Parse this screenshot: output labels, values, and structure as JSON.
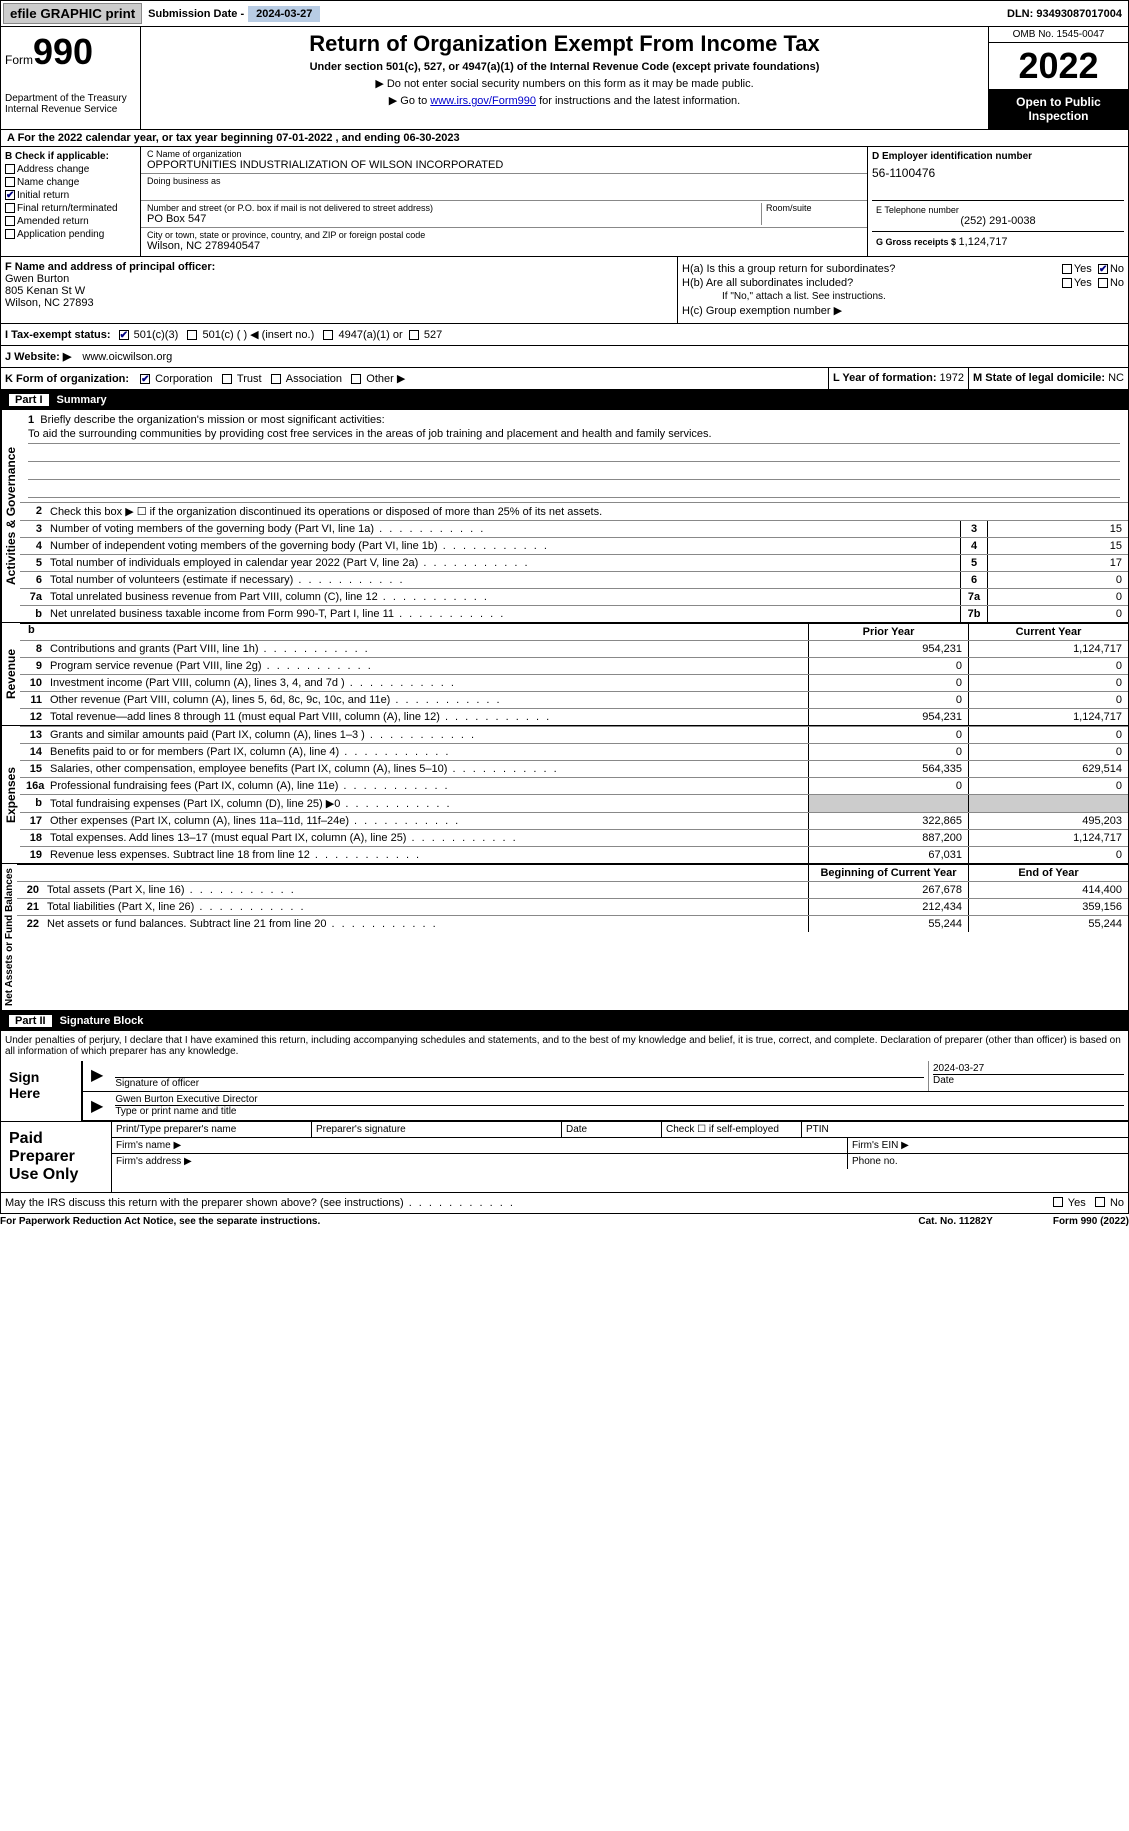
{
  "topbar": {
    "efile_button": "efile GRAPHIC print",
    "submission_label": "Submission Date - ",
    "submission_date": "2024-03-27",
    "dln_label": "DLN: ",
    "dln": "93493087017004"
  },
  "header": {
    "form_prefix": "Form",
    "form_number": "990",
    "dept1": "Department of the Treasury",
    "dept2": "Internal Revenue Service",
    "main_title": "Return of Organization Exempt From Income Tax",
    "subtitle": "Under section 501(c), 527, or 4947(a)(1) of the Internal Revenue Code (except private foundations)",
    "instruction1": "▶ Do not enter social security numbers on this form as it may be made public.",
    "instruction2_prefix": "▶ Go to ",
    "instruction2_link": "www.irs.gov/Form990",
    "instruction2_suffix": " for instructions and the latest information.",
    "omb": "OMB No. 1545-0047",
    "year": "2022",
    "inspection": "Open to Public Inspection"
  },
  "cal_year": "A For the 2022 calendar year, or tax year beginning 07-01-2022    , and ending 06-30-2023",
  "section_b": {
    "label": "B Check if applicable:",
    "options": [
      "Address change",
      "Name change",
      "Initial return",
      "Final return/terminated",
      "Amended return",
      "Application pending"
    ],
    "checked_index": 2
  },
  "section_c": {
    "name_label": "C Name of organization",
    "org_name": "OPPORTUNITIES INDUSTRIALIZATION OF WILSON INCORPORATED",
    "dba_label": "Doing business as",
    "addr_label": "Number and street (or P.O. box if mail is not delivered to street address)",
    "addr": "PO Box 547",
    "room_label": "Room/suite",
    "city_label": "City or town, state or province, country, and ZIP or foreign postal code",
    "city": "Wilson, NC  278940547"
  },
  "section_d": {
    "ein_label": "D Employer identification number",
    "ein": "56-1100476",
    "phone_label": "E Telephone number",
    "phone": "(252) 291-0038",
    "receipts_label": "G Gross receipts $ ",
    "receipts": "1,124,717"
  },
  "section_f": {
    "label": "F Name and address of principal officer:",
    "name": "Gwen Burton",
    "addr1": "805 Kenan St W",
    "addr2": "Wilson, NC  27893"
  },
  "section_h": {
    "ha_label": "H(a)  Is this a group return for subordinates?",
    "hb_label": "H(b)  Are all subordinates included?",
    "hb_note": "If \"No,\" attach a list. See instructions.",
    "hc_label": "H(c)  Group exemption number ▶",
    "yes": "Yes",
    "no": "No",
    "ha_no_checked": true
  },
  "section_i": {
    "label": "I   Tax-exempt status:",
    "opt1": "501(c)(3)",
    "opt2": "501(c) (  ) ◀ (insert no.)",
    "opt3": "4947(a)(1) or",
    "opt4": "527",
    "checked": 0
  },
  "section_j": {
    "label": "J  Website: ▶",
    "value": "www.oicwilson.org"
  },
  "section_k": {
    "label": "K Form of organization:",
    "opts": [
      "Corporation",
      "Trust",
      "Association",
      "Other ▶"
    ],
    "checked": 0
  },
  "section_l": {
    "label": "L Year of formation: ",
    "value": "1972"
  },
  "section_m": {
    "label": "M State of legal domicile: ",
    "value": "NC"
  },
  "parts": {
    "part1_num": "Part I",
    "part1_title": "Summary",
    "part2_num": "Part II",
    "part2_title": "Signature Block"
  },
  "summary": {
    "vert_labels": [
      "Activities & Governance",
      "Revenue",
      "Expenses",
      "Net Assets or Fund Balances"
    ],
    "line1_label": "Briefly describe the organization's mission or most significant activities:",
    "mission": "To aid the surrounding communities by providing cost free services in the areas of job training and placement and health and family services.",
    "line2_label": "Check this box ▶ ☐  if the organization discontinued its operations or disposed of more than 25% of its net assets.",
    "lines_simple": [
      {
        "num": "3",
        "desc": "Number of voting members of the governing body (Part VI, line 1a)",
        "box": "3",
        "val": "15"
      },
      {
        "num": "4",
        "desc": "Number of independent voting members of the governing body (Part VI, line 1b)",
        "box": "4",
        "val": "15"
      },
      {
        "num": "5",
        "desc": "Total number of individuals employed in calendar year 2022 (Part V, line 2a)",
        "box": "5",
        "val": "17"
      },
      {
        "num": "6",
        "desc": "Total number of volunteers (estimate if necessary)",
        "box": "6",
        "val": "0"
      },
      {
        "num": "7a",
        "desc": "Total unrelated business revenue from Part VIII, column (C), line 12",
        "box": "7a",
        "val": "0"
      },
      {
        "num": "b",
        "desc": "Net unrelated business taxable income from Form 990-T, Part I, line 11",
        "box": "7b",
        "val": "0"
      }
    ],
    "col_headers": {
      "prior": "Prior Year",
      "current": "Current Year",
      "begin": "Beginning of Current Year",
      "end": "End of Year"
    },
    "revenue_lines": [
      {
        "num": "8",
        "desc": "Contributions and grants (Part VIII, line 1h)",
        "prior": "954,231",
        "current": "1,124,717"
      },
      {
        "num": "9",
        "desc": "Program service revenue (Part VIII, line 2g)",
        "prior": "0",
        "current": "0"
      },
      {
        "num": "10",
        "desc": "Investment income (Part VIII, column (A), lines 3, 4, and 7d )",
        "prior": "0",
        "current": "0"
      },
      {
        "num": "11",
        "desc": "Other revenue (Part VIII, column (A), lines 5, 6d, 8c, 9c, 10c, and 11e)",
        "prior": "0",
        "current": "0"
      },
      {
        "num": "12",
        "desc": "Total revenue—add lines 8 through 11 (must equal Part VIII, column (A), line 12)",
        "prior": "954,231",
        "current": "1,124,717"
      }
    ],
    "expense_lines": [
      {
        "num": "13",
        "desc": "Grants and similar amounts paid (Part IX, column (A), lines 1–3 )",
        "prior": "0",
        "current": "0"
      },
      {
        "num": "14",
        "desc": "Benefits paid to or for members (Part IX, column (A), line 4)",
        "prior": "0",
        "current": "0"
      },
      {
        "num": "15",
        "desc": "Salaries, other compensation, employee benefits (Part IX, column (A), lines 5–10)",
        "prior": "564,335",
        "current": "629,514"
      },
      {
        "num": "16a",
        "desc": "Professional fundraising fees (Part IX, column (A), line 11e)",
        "prior": "0",
        "current": "0"
      },
      {
        "num": "b",
        "desc": "Total fundraising expenses (Part IX, column (D), line 25) ▶0",
        "prior": "shaded",
        "current": "shaded"
      },
      {
        "num": "17",
        "desc": "Other expenses (Part IX, column (A), lines 11a–11d, 11f–24e)",
        "prior": "322,865",
        "current": "495,203"
      },
      {
        "num": "18",
        "desc": "Total expenses. Add lines 13–17 (must equal Part IX, column (A), line 25)",
        "prior": "887,200",
        "current": "1,124,717"
      },
      {
        "num": "19",
        "desc": "Revenue less expenses. Subtract line 18 from line 12",
        "prior": "67,031",
        "current": "0"
      }
    ],
    "netassets_lines": [
      {
        "num": "20",
        "desc": "Total assets (Part X, line 16)",
        "prior": "267,678",
        "current": "414,400"
      },
      {
        "num": "21",
        "desc": "Total liabilities (Part X, line 26)",
        "prior": "212,434",
        "current": "359,156"
      },
      {
        "num": "22",
        "desc": "Net assets or fund balances. Subtract line 21 from line 20",
        "prior": "55,244",
        "current": "55,244"
      }
    ]
  },
  "signature": {
    "declaration": "Under penalties of perjury, I declare that I have examined this return, including accompanying schedules and statements, and to the best of my knowledge and belief, it is true, correct, and complete. Declaration of preparer (other than officer) is based on all information of which preparer has any knowledge.",
    "sign_here": "Sign Here",
    "sig_officer_label": "Signature of officer",
    "sig_date": "2024-03-27",
    "date_label": "Date",
    "typed_name": "Gwen Burton Executive Director",
    "typed_label": "Type or print name and title"
  },
  "preparer": {
    "label": "Paid Preparer Use Only",
    "print_name_label": "Print/Type preparer's name",
    "sig_label": "Preparer's signature",
    "date_label": "Date",
    "check_label": "Check ☐ if self-employed",
    "ptin_label": "PTIN",
    "firm_name_label": "Firm's name  ▶",
    "firm_ein_label": "Firm's EIN ▶",
    "firm_addr_label": "Firm's address ▶",
    "phone_label": "Phone no."
  },
  "discuss": {
    "text": "May the IRS discuss this return with the preparer shown above? (see instructions)",
    "yes": "Yes",
    "no": "No"
  },
  "footer": {
    "left": "For Paperwork Reduction Act Notice, see the separate instructions.",
    "mid": "Cat. No. 11282Y",
    "right": "Form 990 (2022)"
  }
}
